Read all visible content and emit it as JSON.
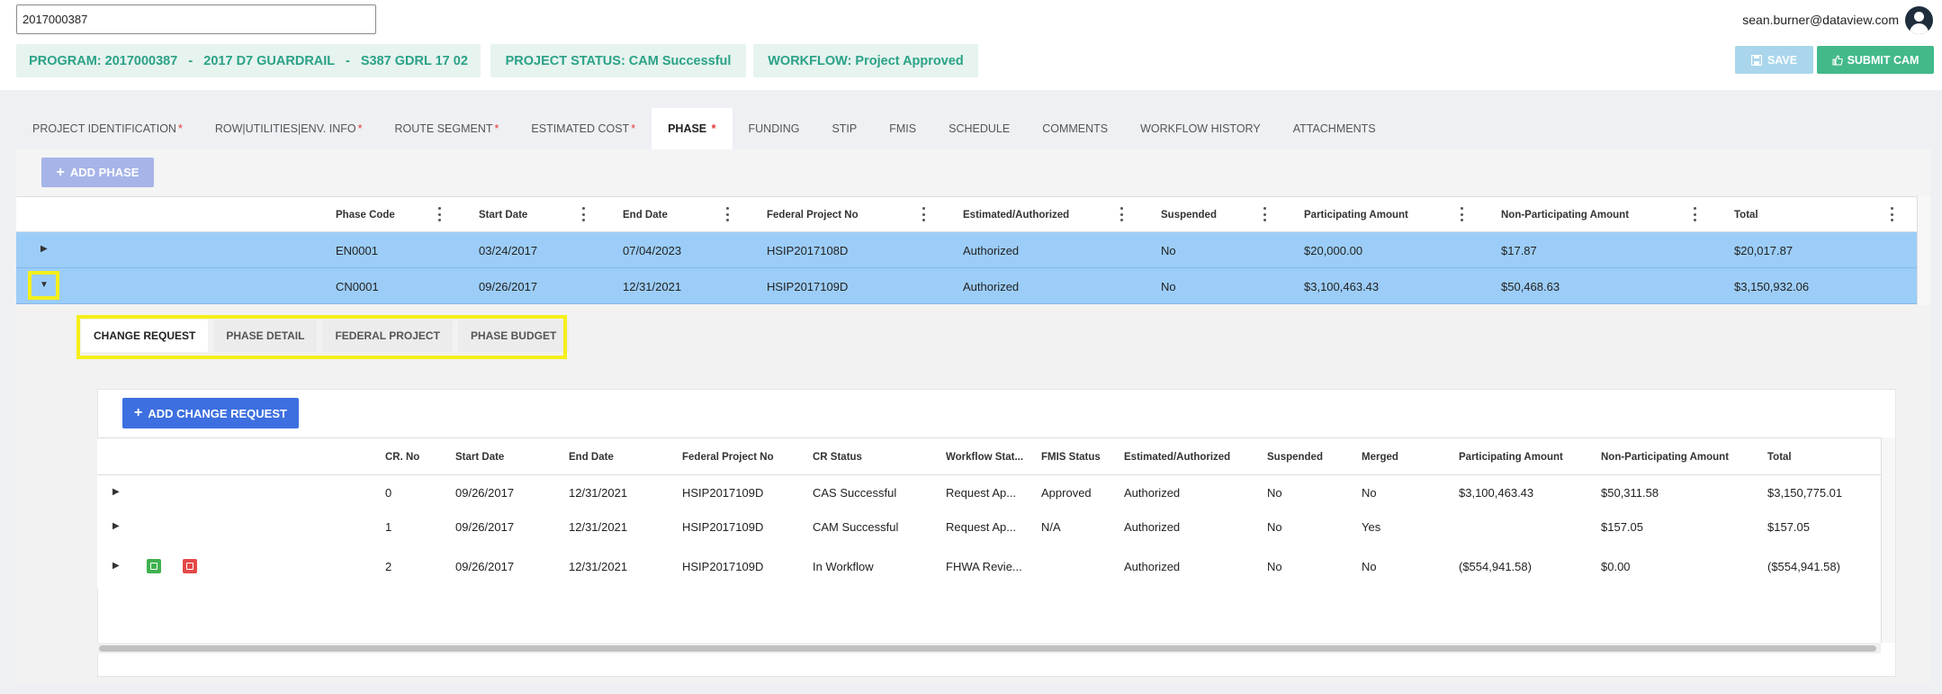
{
  "search": {
    "value": "2017000387",
    "placeholder": ""
  },
  "user": {
    "email": "sean.burner@dataview.com"
  },
  "chips": {
    "program": "PROGRAM: 2017000387   -   2017 D7 GUARDRAIL   -   S387 GDRL 17 02",
    "status": "PROJECT STATUS: CAM Successful",
    "workflow": "WORKFLOW: Project Approved"
  },
  "actions": {
    "save": "SAVE",
    "submit": "SUBMIT CAM"
  },
  "tabs": [
    {
      "label": "PROJECT IDENTIFICATION",
      "required": "*"
    },
    {
      "label": "ROW|UTILITIES|ENV. INFO",
      "required": "*"
    },
    {
      "label": "ROUTE SEGMENT",
      "required": "*"
    },
    {
      "label": "ESTIMATED COST",
      "required": "*"
    },
    {
      "label": "PHASE ",
      "required": "*"
    },
    {
      "label": "FUNDING",
      "required": ""
    },
    {
      "label": "STIP",
      "required": ""
    },
    {
      "label": "FMIS",
      "required": ""
    },
    {
      "label": "SCHEDULE",
      "required": ""
    },
    {
      "label": "COMMENTS",
      "required": ""
    },
    {
      "label": "WORKFLOW HISTORY",
      "required": ""
    },
    {
      "label": "ATTACHMENTS",
      "required": ""
    }
  ],
  "phase": {
    "add_label": "ADD PHASE",
    "columns": [
      "Phase Code",
      "Start Date",
      "End Date",
      "Federal Project No",
      "Estimated/Authorized",
      "Suspended",
      "Participating Amount",
      "Non-Participating Amount",
      "Total"
    ],
    "rows": [
      [
        "EN0001",
        "03/24/2017",
        "07/04/2023",
        "HSIP2017108D",
        "Authorized",
        "No",
        "$20,000.00",
        "$17.87",
        "$20,017.87"
      ],
      [
        "CN0001",
        "09/26/2017",
        "12/31/2021",
        "HSIP2017109D",
        "Authorized",
        "No",
        "$3,100,463.43",
        "$50,468.63",
        "$3,150,932.06"
      ]
    ]
  },
  "subtabs": [
    "CHANGE REQUEST",
    "PHASE DETAIL",
    "FEDERAL PROJECT",
    "PHASE BUDGET"
  ],
  "change_requests": {
    "add_label": "ADD CHANGE REQUEST",
    "columns": [
      "CR. No",
      "Start Date",
      "End Date",
      "Federal Project No",
      "CR Status",
      "Workflow Stat...",
      "FMIS Status",
      "Estimated/Authorized",
      "Suspended",
      "Merged",
      "Participating Amount",
      "Non-Participating Amount",
      "Total"
    ],
    "rows": [
      [
        "0",
        "09/26/2017",
        "12/31/2021",
        "HSIP2017109D",
        "CAS Successful",
        "Request Ap...",
        "Approved",
        "Authorized",
        "No",
        "No",
        "$3,100,463.43",
        "$50,311.58",
        "$3,150,775.01"
      ],
      [
        "1",
        "09/26/2017",
        "12/31/2021",
        "HSIP2017109D",
        "CAM Successful",
        "Request Ap...",
        "N/A",
        "Authorized",
        "No",
        "Yes",
        "",
        "$157.05",
        "$157.05"
      ],
      [
        "2",
        "09/26/2017",
        "12/31/2021",
        "HSIP2017109D",
        "In Workflow",
        "FHWA Revie...",
        "",
        "Authorized",
        "No",
        "No",
        "($554,941.58)",
        "$0.00",
        "($554,941.58)"
      ]
    ]
  },
  "colors": {
    "accent": "#2aa287",
    "row_selected": "#9ccdf8",
    "highlight": "#f5ef1b",
    "primary_button": "#3d6fe0",
    "submit_button": "#43b98a"
  },
  "icons": {
    "save": "floppy-disk-icon",
    "submit": "thumbs-up-icon",
    "add": "plus-icon",
    "expand": "caret-right-icon",
    "collapse": "caret-down-icon",
    "column_menu": "kebab-menu-icon",
    "user": "user-avatar-icon",
    "row_edit": "edit-icon",
    "row_cancel": "cancel-icon"
  }
}
